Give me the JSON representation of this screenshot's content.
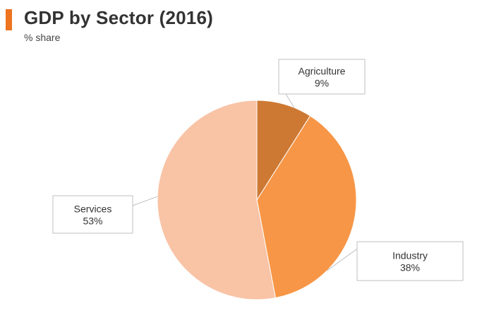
{
  "header": {
    "title": "GDP by Sector (2016)",
    "subtitle": "% share",
    "accent_color": "#ee7420"
  },
  "chart_data": {
    "type": "pie",
    "title": "GDP by Sector (2016)",
    "subtitle": "% share",
    "unit": "%",
    "legend": "none",
    "slices": [
      {
        "label": "Agriculture",
        "value": 9,
        "value_label": "9%",
        "color": "#cd7934"
      },
      {
        "label": "Industry",
        "value": 38,
        "value_label": "38%",
        "color": "#f79646"
      },
      {
        "label": "Services",
        "value": 53,
        "value_label": "53%",
        "color": "#f9c3a6"
      }
    ]
  }
}
